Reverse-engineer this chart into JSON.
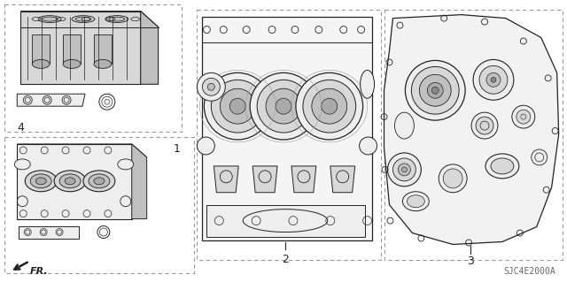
{
  "background_color": "#ffffff",
  "line_color": "#222222",
  "dash_color": "#999999",
  "fill_light": "#eeeeee",
  "fill_mid": "#d8d8d8",
  "fill_dark": "#c0c0c0",
  "label_1": "1",
  "label_2": "2",
  "label_3": "3",
  "label_4": "4",
  "fr_text": "FR.",
  "footer": "SJC4E2000A",
  "fig_width": 6.4,
  "fig_height": 3.19,
  "dpi": 100
}
